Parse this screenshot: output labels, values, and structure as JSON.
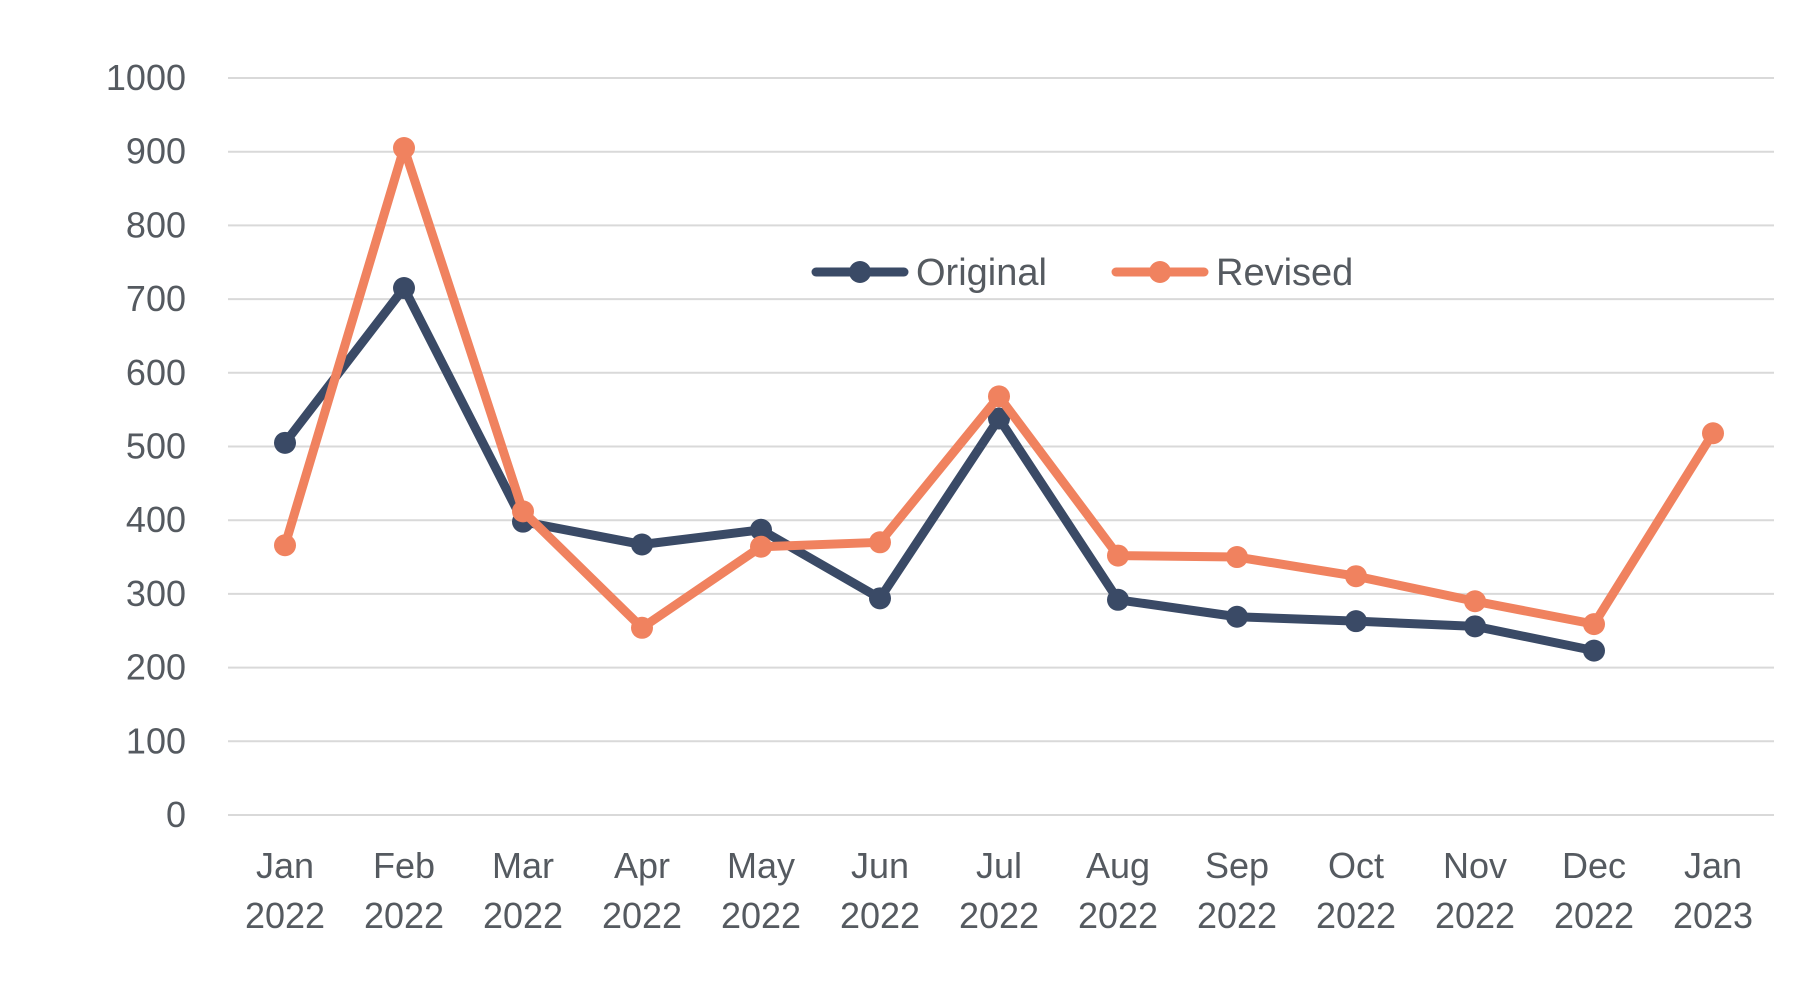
{
  "chart_data": {
    "type": "line",
    "categories": [
      [
        "Jan",
        "2022"
      ],
      [
        "Feb",
        "2022"
      ],
      [
        "Mar",
        "2022"
      ],
      [
        "Apr",
        "2022"
      ],
      [
        "May",
        "2022"
      ],
      [
        "Jun",
        "2022"
      ],
      [
        "Jul",
        "2022"
      ],
      [
        "Aug",
        "2022"
      ],
      [
        "Sep",
        "2022"
      ],
      [
        "Oct",
        "2022"
      ],
      [
        "Nov",
        "2022"
      ],
      [
        "Dec",
        "2022"
      ],
      [
        "Jan",
        "2023"
      ]
    ],
    "ylim": [
      0,
      1000
    ],
    "yticks": [
      "0",
      "100",
      "200",
      "300",
      "400",
      "500",
      "600",
      "700",
      "800",
      "900",
      "1000"
    ],
    "grid": true,
    "legend_position": "top-center",
    "series": [
      {
        "name": "Original",
        "color": "#3a4a66",
        "values": [
          505,
          715,
          398,
          367,
          387,
          294,
          538,
          292,
          269,
          263,
          256,
          223,
          null
        ]
      },
      {
        "name": "Revised",
        "color": "#f0825f",
        "values": [
          366,
          905,
          412,
          254,
          364,
          370,
          568,
          352,
          350,
          324,
          290,
          259,
          518
        ]
      }
    ]
  }
}
